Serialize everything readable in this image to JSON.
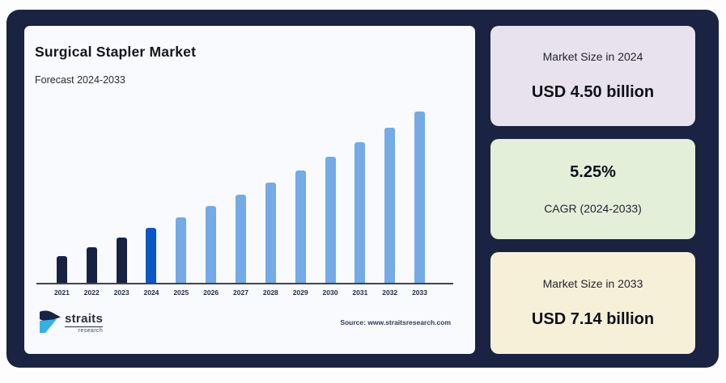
{
  "frame": {
    "bg": "#1a2341",
    "outer_bg": "#fdfdfe"
  },
  "chart_card": {
    "bg": "#f8fafd",
    "title": "Surgical Stapler Market",
    "subtitle": "Forecast 2024-2033",
    "source": "Source: www.straitsresearch.com",
    "logo": {
      "name": "straits",
      "sub": "research",
      "icon_navy": "#1a2341",
      "icon_blue": "#33b1e6"
    }
  },
  "chart_data": {
    "type": "bar",
    "title": "Surgical Stapler Market",
    "subtitle": "Forecast 2024-2033",
    "unit": "USD billion",
    "categories": [
      "2021",
      "2022",
      "2023",
      "2024",
      "2025",
      "2026",
      "2027",
      "2028",
      "2029",
      "2030",
      "2031",
      "2032",
      "2033"
    ],
    "values": [
      3.86,
      4.06,
      4.28,
      4.5,
      4.74,
      4.99,
      5.25,
      5.52,
      5.81,
      6.12,
      6.44,
      6.78,
      7.14
    ],
    "bar_colors": [
      "#172243",
      "#172243",
      "#172243",
      "#0d56c5",
      "#74aae5",
      "#74aae5",
      "#74aae5",
      "#74aae5",
      "#74aae5",
      "#74aae5",
      "#74aae5",
      "#74aae5",
      "#74aae5"
    ],
    "color_legend": {
      "historical_2021_2023": "#172243",
      "base_year_2024": "#0d56c5",
      "forecast_2025_2033": "#74aae5"
    },
    "ylim": [
      3.25,
      7.2
    ],
    "grid": false,
    "axis_color": "#42454d",
    "xlabel": "",
    "ylabel": ""
  },
  "stat_cards": [
    {
      "bg": "#e7e2ee",
      "label": "Market Size in 2024",
      "value": "USD 4.50 billion"
    },
    {
      "bg": "#e4efda",
      "value": "5.25%",
      "label": "CAGR (2024-2033)"
    },
    {
      "bg": "#f7f0d8",
      "label": "Market Size in 2033",
      "value": "USD 7.14 billion"
    }
  ]
}
